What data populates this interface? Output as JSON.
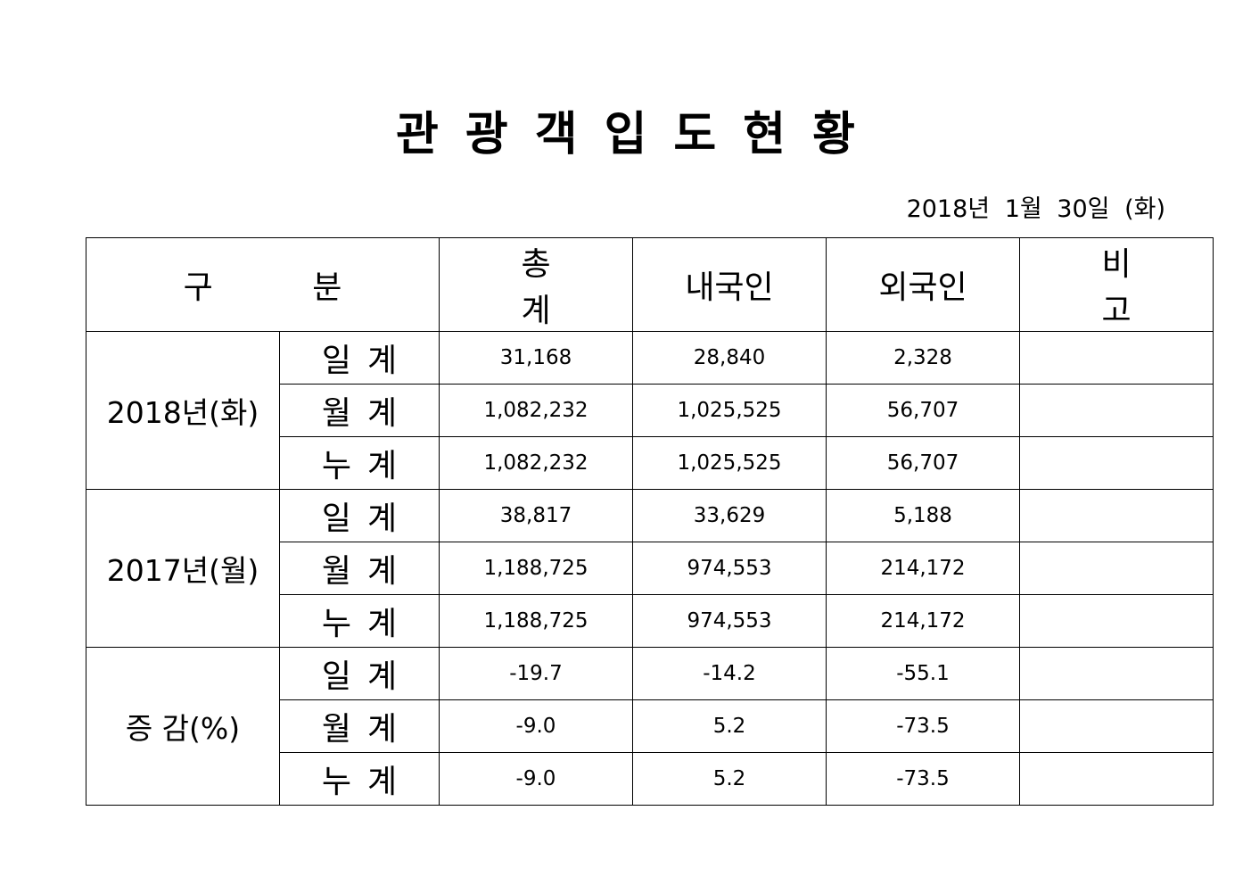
{
  "title": "관광객입도현황",
  "date": "2018년 1월 30일 (화)",
  "headers": [
    "구 분",
    "총 계",
    "내국인",
    "외국인",
    "비 고"
  ],
  "groups": [
    {
      "label": "2018년(화)",
      "rows": [
        {
          "type": "일계",
          "total": "31,168",
          "domestic": "28,840",
          "foreign": "2,328",
          "note": ""
        },
        {
          "type": "월계",
          "total": "1,082,232",
          "domestic": "1,025,525",
          "foreign": "56,707",
          "note": ""
        },
        {
          "type": "누계",
          "total": "1,082,232",
          "domestic": "1,025,525",
          "foreign": "56,707",
          "note": ""
        }
      ]
    },
    {
      "label": "2017년(월)",
      "rows": [
        {
          "type": "일계",
          "total": "38,817",
          "domestic": "33,629",
          "foreign": "5,188",
          "note": ""
        },
        {
          "type": "월계",
          "total": "1,188,725",
          "domestic": "974,553",
          "foreign": "214,172",
          "note": ""
        },
        {
          "type": "누계",
          "total": "1,188,725",
          "domestic": "974,553",
          "foreign": "214,172",
          "note": ""
        }
      ]
    },
    {
      "label": "증 감(%)",
      "rows": [
        {
          "type": "일계",
          "total": "-19.7",
          "domestic": "-14.2",
          "foreign": "-55.1",
          "note": ""
        },
        {
          "type": "월계",
          "total": "-9.0",
          "domestic": "5.2",
          "foreign": "-73.5",
          "note": ""
        },
        {
          "type": "누계",
          "total": "-9.0",
          "domestic": "5.2",
          "foreign": "-73.5",
          "note": ""
        }
      ]
    }
  ]
}
